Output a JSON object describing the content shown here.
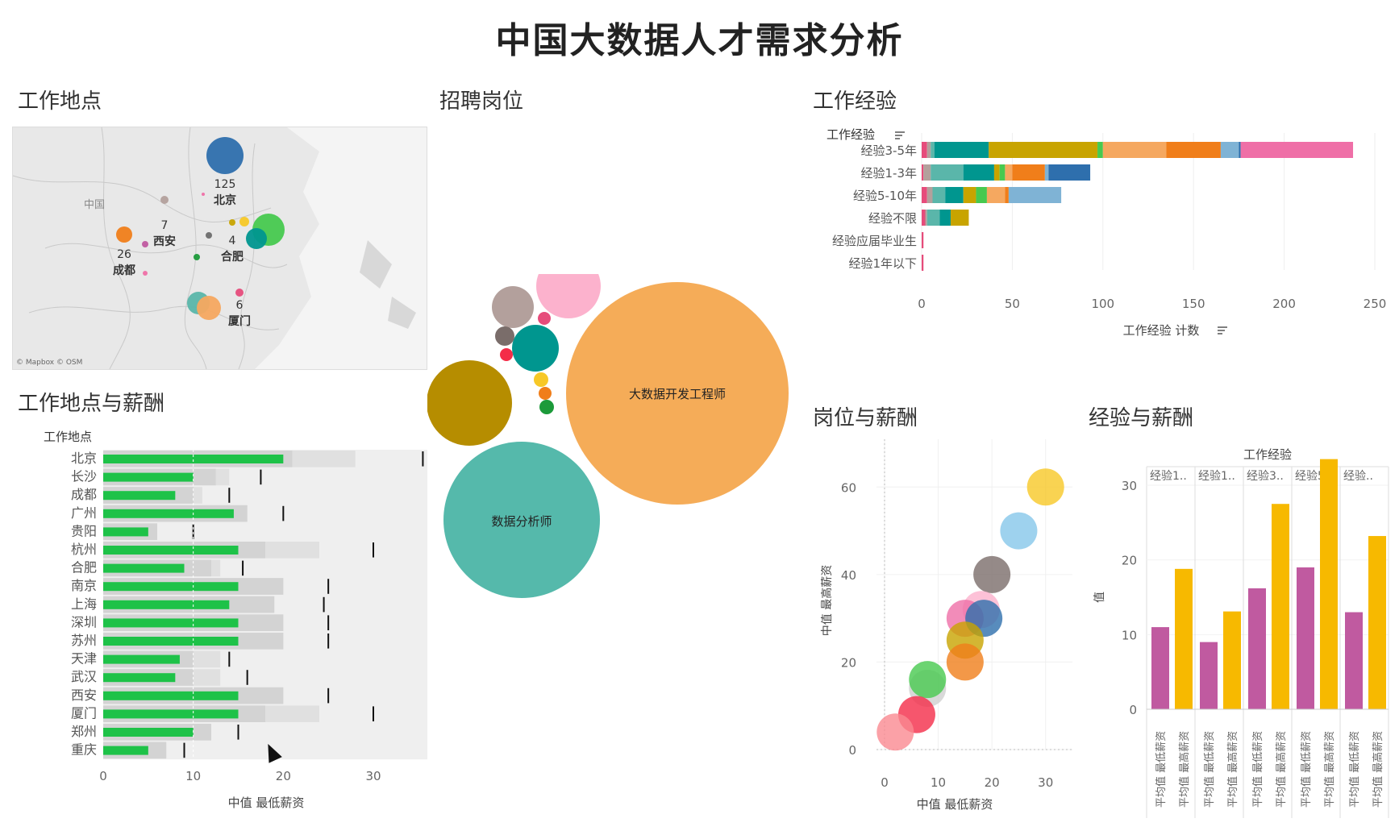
{
  "title": "中国大数据人才需求分析",
  "panels": {
    "location": "工作地点",
    "positions": "招聘岗位",
    "experience": "工作经验",
    "location_salary": "工作地点与薪酬",
    "position_salary": "岗位与薪酬",
    "experience_salary": "经验与薪酬"
  },
  "map": {
    "country_label": "中国",
    "attribution": "© Mapbox © OSM",
    "cities": [
      {
        "name": "北京",
        "count": "125",
        "color": "#2e6fad"
      },
      {
        "name": "西安",
        "count": "7",
        "color": "#b3a09c"
      },
      {
        "name": "成都",
        "count": "26",
        "color": "#f07e1a"
      },
      {
        "name": "合肥",
        "count": "4",
        "color": "#6d6d6d"
      },
      {
        "name": "厦门",
        "count": "6",
        "color": "#e64c7b"
      }
    ],
    "other_colors": [
      "#00968f",
      "#47c94f",
      "#f5a860",
      "#5ab6aa",
      "#c8a400",
      "#f7c827",
      "#86c7ea",
      "#1c9a3a",
      "#c05aa0",
      "#ef6fa7"
    ]
  },
  "experience_chart": {
    "type": "bar",
    "axis_header": "工作经验",
    "xlabel": "工作经验 计数",
    "xlim": [
      0,
      250
    ],
    "ticks": [
      0,
      50,
      100,
      150,
      200,
      250
    ],
    "categories": [
      "经验3-5年",
      "经验1-3年",
      "经验5-10年",
      "经验不限",
      "经验应届毕业生",
      "经验1年以下"
    ],
    "segment_colors": [
      "#e64c7b",
      "#b3a09c",
      "#5ab6aa",
      "#00968f",
      "#c8a400",
      "#47c94f",
      "#f5a860",
      "#f07e1a",
      "#7fb3d5",
      "#2e6fad",
      "#ef6fa7"
    ],
    "segments": [
      [
        3,
        2,
        2,
        30,
        60,
        3,
        35,
        30,
        10,
        1,
        62
      ],
      [
        1,
        4,
        18,
        17,
        3,
        3,
        4,
        18,
        2,
        23,
        0
      ],
      [
        3,
        3,
        7,
        10,
        7,
        6,
        10,
        2,
        29,
        0,
        0
      ],
      [
        2,
        1,
        7,
        6,
        10,
        0,
        0,
        0,
        0,
        0,
        0
      ],
      [
        1,
        0,
        0,
        0,
        0,
        0,
        0,
        0,
        0,
        0,
        0
      ],
      [
        1,
        0,
        0,
        0,
        0,
        0,
        0,
        0,
        0,
        0,
        0
      ]
    ]
  },
  "bubble_chart": {
    "type": "bubble",
    "labels": {
      "large": "大数据开发工程师",
      "teal": "数据分析师"
    },
    "colors": [
      "#f5ac58",
      "#55b9ab",
      "#b68d00",
      "#fcb2cd",
      "#b3a09c",
      "#00968f",
      "#7a6d6a",
      "#e64c7b",
      "#f42c48",
      "#f7c827",
      "#f07e1a",
      "#1c9a3a"
    ]
  },
  "location_salary_chart": {
    "type": "bar",
    "axis_header": "工作地点",
    "xlabel": "中值 最低薪资",
    "xlim": [
      0,
      36
    ],
    "ticks": [
      0,
      10,
      20,
      30
    ],
    "cities": [
      "北京",
      "长沙",
      "成都",
      "广州",
      "贵阳",
      "杭州",
      "合肥",
      "南京",
      "上海",
      "深圳",
      "苏州",
      "天津",
      "武汉",
      "西安",
      "厦门",
      "郑州",
      "重庆"
    ],
    "values": [
      20,
      10,
      8,
      14.5,
      5,
      15,
      9,
      15,
      14,
      15,
      15,
      8.5,
      8,
      15,
      15,
      10,
      5
    ],
    "band1": [
      21,
      12.5,
      10,
      16,
      6,
      18,
      12,
      20,
      19,
      20,
      20,
      10,
      10,
      20,
      18,
      12,
      7
    ],
    "band2": [
      28,
      14,
      11,
      16,
      6,
      24,
      13,
      20,
      19,
      20,
      20,
      13,
      13,
      20,
      24,
      12,
      7
    ],
    "target": [
      35.5,
      17.5,
      14,
      20,
      10,
      30,
      15.5,
      25,
      24.5,
      25,
      25,
      14,
      16,
      25,
      30,
      15,
      9
    ]
  },
  "position_salary_chart": {
    "type": "scatter",
    "xlabel": "中值 最低薪资",
    "ylabel": "中值 最高薪资",
    "xticks": [
      0,
      10,
      20,
      30
    ],
    "yticks": [
      0,
      20,
      40,
      60
    ],
    "points": [
      {
        "x": 30,
        "y": 60,
        "color": "#f7c827"
      },
      {
        "x": 25,
        "y": 50,
        "color": "#86c7ea"
      },
      {
        "x": 20,
        "y": 40,
        "color": "#7a6d6a"
      },
      {
        "x": 18,
        "y": 32,
        "color": "#fcb2cd"
      },
      {
        "x": 15,
        "y": 30,
        "color": "#ef6fa7"
      },
      {
        "x": 18.5,
        "y": 30,
        "color": "#2e6fad"
      },
      {
        "x": 15,
        "y": 25,
        "color": "#c8a400"
      },
      {
        "x": 15,
        "y": 20,
        "color": "#f07e1a"
      },
      {
        "x": 8,
        "y": 14,
        "color": "#cfcfcf"
      },
      {
        "x": 8,
        "y": 16,
        "color": "#47c94f"
      },
      {
        "x": 6,
        "y": 8,
        "color": "#f42c48"
      },
      {
        "x": 2,
        "y": 4,
        "color": "#fa8a91"
      }
    ]
  },
  "experience_salary_chart": {
    "type": "bar",
    "header": "工作经验",
    "ylabel": "值",
    "yticks": [
      0,
      10,
      20,
      30
    ],
    "groups": [
      "经验1..",
      "经验1..",
      "经验3..",
      "经验5-..",
      "经验.."
    ],
    "x_labels": [
      "平均值 最低薪资",
      "平均值 最高薪资"
    ],
    "series": [
      {
        "color": "#c05aa0",
        "values": [
          11,
          9,
          16.2,
          19,
          13
        ]
      },
      {
        "color": "#f7b900",
        "values": [
          18.8,
          13.1,
          27.5,
          33.5,
          23.2
        ]
      }
    ]
  }
}
